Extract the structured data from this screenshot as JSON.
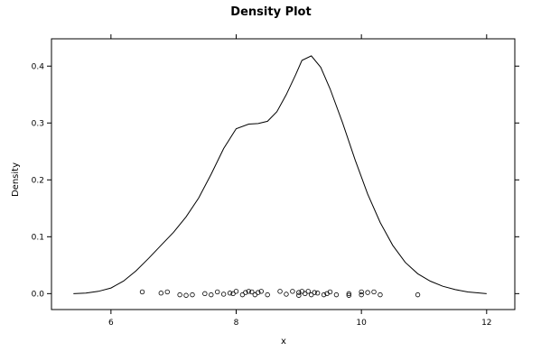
{
  "chart_data": {
    "type": "line",
    "title": "Density Plot",
    "xlabel": "x",
    "ylabel": "Density",
    "xlim": [
      5.05,
      12.45
    ],
    "ylim": [
      -0.028,
      0.448
    ],
    "x_ticks": [
      6,
      8,
      10,
      12
    ],
    "x_tick_labels": [
      "6",
      "8",
      "10",
      "12"
    ],
    "y_ticks": [
      0.0,
      0.1,
      0.2,
      0.3,
      0.4
    ],
    "y_tick_labels": [
      "0.0",
      "0.1",
      "0.2",
      "0.3",
      "0.4"
    ],
    "grid": false,
    "legend": "none",
    "line_color": "#000000",
    "point_color": "#000000",
    "series": [
      {
        "values": [
          [
            5.4,
            0.0
          ],
          [
            5.6,
            0.001
          ],
          [
            5.8,
            0.004
          ],
          [
            6.0,
            0.01
          ],
          [
            6.2,
            0.022
          ],
          [
            6.4,
            0.04
          ],
          [
            6.6,
            0.062
          ],
          [
            6.8,
            0.085
          ],
          [
            7.0,
            0.108
          ],
          [
            7.2,
            0.135
          ],
          [
            7.4,
            0.168
          ],
          [
            7.6,
            0.21
          ],
          [
            7.8,
            0.255
          ],
          [
            8.0,
            0.29
          ],
          [
            8.2,
            0.298
          ],
          [
            8.35,
            0.299
          ],
          [
            8.5,
            0.303
          ],
          [
            8.65,
            0.32
          ],
          [
            8.8,
            0.35
          ],
          [
            8.95,
            0.385
          ],
          [
            9.05,
            0.41
          ],
          [
            9.2,
            0.418
          ],
          [
            9.35,
            0.398
          ],
          [
            9.5,
            0.36
          ],
          [
            9.7,
            0.3
          ],
          [
            9.9,
            0.235
          ],
          [
            10.1,
            0.175
          ],
          [
            10.3,
            0.125
          ],
          [
            10.5,
            0.085
          ],
          [
            10.7,
            0.055
          ],
          [
            10.9,
            0.035
          ],
          [
            11.1,
            0.022
          ],
          [
            11.3,
            0.013
          ],
          [
            11.5,
            0.007
          ],
          [
            11.7,
            0.003
          ],
          [
            11.9,
            0.001
          ],
          [
            12.0,
            0.0
          ]
        ]
      }
    ],
    "rug_points": [
      [
        6.5,
        0.003
      ],
      [
        6.8,
        0.001
      ],
      [
        6.9,
        0.003
      ],
      [
        7.1,
        -0.002
      ],
      [
        7.2,
        -0.003
      ],
      [
        7.3,
        -0.002
      ],
      [
        7.5,
        0.0
      ],
      [
        7.6,
        -0.002
      ],
      [
        7.7,
        0.003
      ],
      [
        7.8,
        -0.001
      ],
      [
        7.9,
        0.001
      ],
      [
        7.95,
        0.0
      ],
      [
        8.0,
        0.004
      ],
      [
        8.1,
        -0.002
      ],
      [
        8.15,
        0.002
      ],
      [
        8.2,
        0.004
      ],
      [
        8.25,
        0.003
      ],
      [
        8.3,
        -0.002
      ],
      [
        8.35,
        0.002
      ],
      [
        8.4,
        0.004
      ],
      [
        8.5,
        -0.002
      ],
      [
        8.7,
        0.004
      ],
      [
        8.8,
        -0.001
      ],
      [
        8.9,
        0.004
      ],
      [
        9.0,
        0.002
      ],
      [
        9.0,
        -0.003
      ],
      [
        9.05,
        0.004
      ],
      [
        9.1,
        0.0
      ],
      [
        9.15,
        0.004
      ],
      [
        9.2,
        -0.002
      ],
      [
        9.25,
        0.002
      ],
      [
        9.3,
        0.001
      ],
      [
        9.4,
        -0.002
      ],
      [
        9.45,
        0.0
      ],
      [
        9.5,
        0.003
      ],
      [
        9.6,
        -0.002
      ],
      [
        9.8,
        0.0
      ],
      [
        9.8,
        -0.003
      ],
      [
        10.0,
        0.003
      ],
      [
        10.0,
        -0.002
      ],
      [
        10.1,
        0.002
      ],
      [
        10.2,
        0.003
      ],
      [
        10.3,
        -0.002
      ],
      [
        10.9,
        -0.002
      ]
    ]
  }
}
